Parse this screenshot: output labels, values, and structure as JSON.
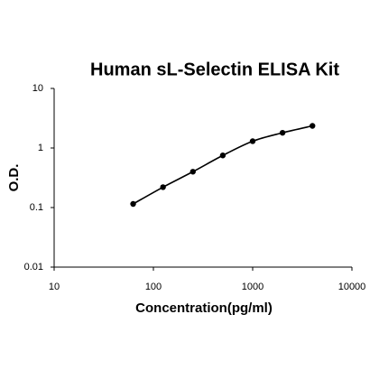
{
  "chart_data": {
    "type": "line",
    "title": "Human sL-Selectin ELISA Kit",
    "x_label": "Concentration(pg/ml)",
    "y_label": "O.D.",
    "x": [
      62.5,
      125,
      250,
      500,
      1000,
      2000,
      4000
    ],
    "values": [
      0.115,
      0.22,
      0.4,
      0.75,
      1.3,
      1.8,
      2.35
    ],
    "color": "#000000",
    "xscale": "log",
    "yscale": "log",
    "markers": true,
    "xlim": [
      10,
      10000
    ],
    "xticks": [
      10,
      100,
      1000,
      10000
    ],
    "ylim": [
      0.01,
      10
    ],
    "yticks": [
      0.01,
      0.1,
      1,
      10
    ]
  }
}
